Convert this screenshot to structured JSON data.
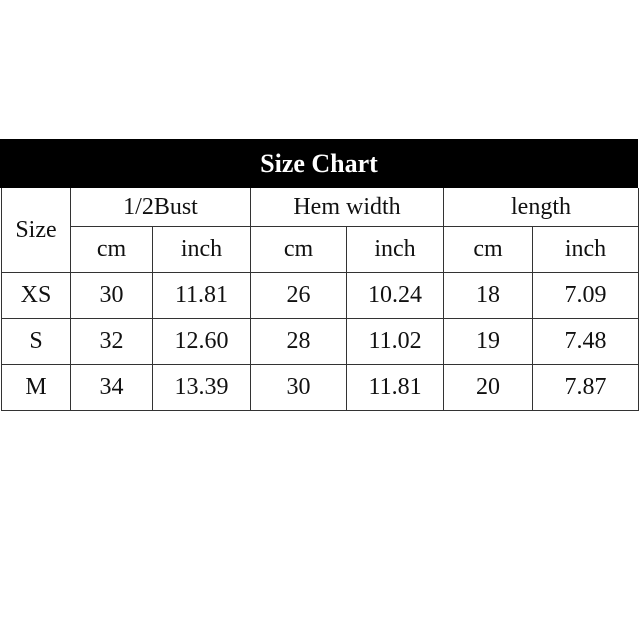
{
  "title": "Size Chart",
  "headers": {
    "size": "Size",
    "groups": [
      "1/2Bust",
      "Hem width",
      "length"
    ],
    "units": [
      "cm",
      "inch",
      "cm",
      "inch",
      "cm",
      "inch"
    ]
  },
  "rows": [
    {
      "size": "XS",
      "values": [
        "30",
        "11.81",
        "26",
        "10.24",
        "18",
        "7.09"
      ]
    },
    {
      "size": "S",
      "values": [
        "32",
        "12.60",
        "28",
        "11.02",
        "19",
        "7.48"
      ]
    },
    {
      "size": "M",
      "values": [
        "34",
        "13.39",
        "30",
        "11.81",
        "20",
        "7.87"
      ]
    }
  ]
}
